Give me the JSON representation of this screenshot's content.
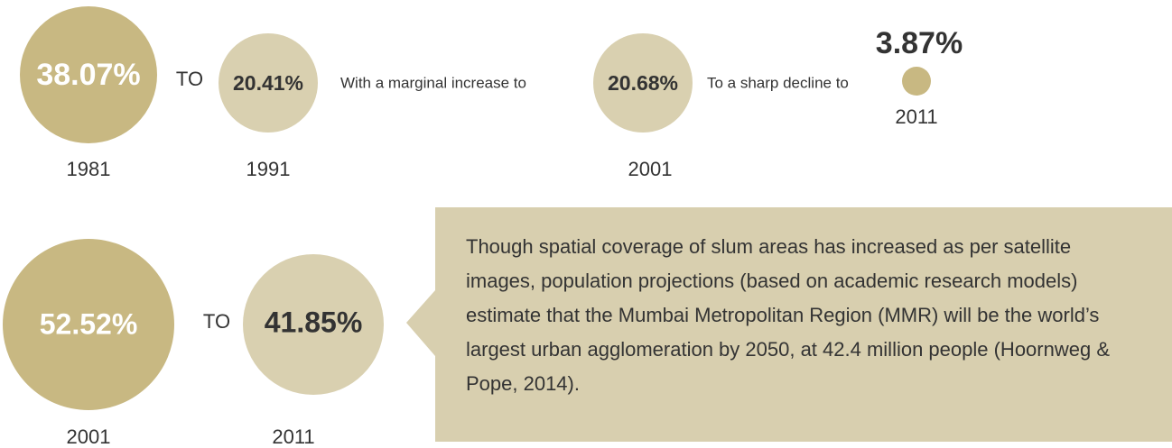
{
  "row1": {
    "items": [
      {
        "value": "38.07%",
        "year": "1981"
      },
      {
        "value": "20.41%",
        "year": "1991"
      },
      {
        "value": "20.68%",
        "year": "2001"
      },
      {
        "value": "3.87%",
        "year": "2011"
      }
    ],
    "connectors": [
      "TO",
      "With a marginal increase to",
      "To a sharp decline to"
    ]
  },
  "row2": {
    "items": [
      {
        "value": "52.52%",
        "year": "2001"
      },
      {
        "value": "41.85%",
        "year": "2011"
      }
    ],
    "connector": "TO"
  },
  "callout": "Though spatial coverage of slum areas has increased as per satellite images, population projections (based on academic research models) estimate that the Mumbai Metropolitan Region (MMR) will be the world’s largest urban agglomeration by 2050, at 42.4 million people (Hoornweg & Pope, 2014)."
}
